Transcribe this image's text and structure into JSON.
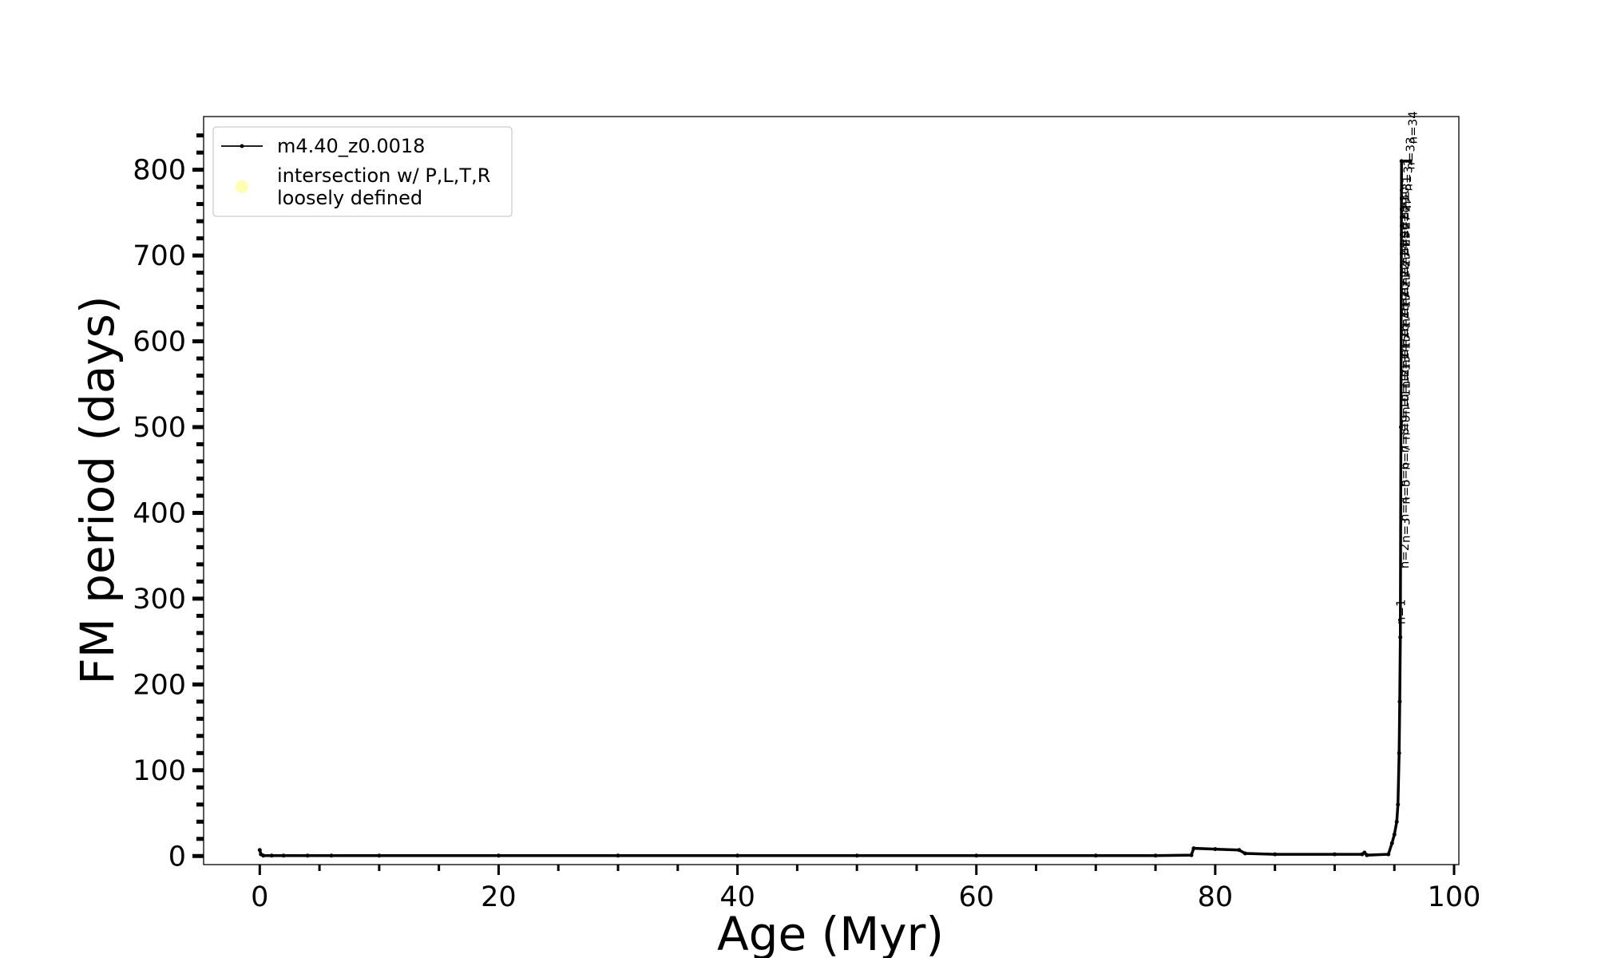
{
  "chart_data": {
    "type": "line",
    "x_label": "Age (Myr)",
    "y_label": "FM period (days)",
    "xlim": [
      -4.7,
      100.4
    ],
    "ylim": [
      -10,
      862
    ],
    "xticks": [
      0,
      20,
      40,
      60,
      80,
      100
    ],
    "yticks": [
      0,
      100,
      200,
      300,
      400,
      500,
      600,
      700,
      800
    ],
    "xminorticks": [
      5,
      10,
      15,
      25,
      30,
      35,
      45,
      50,
      55,
      65,
      70,
      75,
      85,
      90,
      95
    ],
    "yminorticks": [
      20,
      40,
      60,
      80,
      120,
      140,
      160,
      180,
      220,
      240,
      260,
      280,
      320,
      340,
      360,
      380,
      420,
      440,
      460,
      480,
      520,
      540,
      560,
      580,
      620,
      640,
      660,
      680,
      720,
      740,
      760,
      780,
      820,
      840
    ],
    "legend": "upper left",
    "series": [
      {
        "name": "m4.40_z0.0018",
        "color": "#000000",
        "x": [
          0,
          0.1,
          0.3,
          1,
          2,
          4,
          6,
          10,
          20,
          30,
          40,
          50,
          60,
          70,
          75,
          78,
          78.2,
          80,
          82,
          82.5,
          85,
          90,
          92.3,
          92.5,
          92.7,
          94.5,
          94.8,
          95,
          95.2,
          95.3,
          95.4,
          95.45,
          95.5,
          95.55,
          95.6,
          96.3
        ],
        "values": [
          7,
          2,
          0.5,
          0.5,
          0.5,
          0.5,
          0.5,
          0.5,
          0.5,
          0.5,
          0.5,
          0.5,
          0.5,
          0.5,
          0.5,
          1,
          9,
          8,
          7,
          3,
          2,
          2,
          2,
          4,
          1,
          2,
          15,
          25,
          40,
          60,
          120,
          180,
          255,
          500,
          810,
          810
        ]
      },
      {
        "name": "intersection w/ P,L,T,R\nloosely defined",
        "color": "#ffffb0",
        "x": [],
        "values": []
      }
    ],
    "annotations": [
      {
        "text": "n=1",
        "x": 95.9,
        "y": 270
      },
      {
        "text": "n=2",
        "x": 96.2,
        "y": 335
      },
      {
        "text": "n=3",
        "x": 96.3,
        "y": 365
      },
      {
        "text": "n=4",
        "x": 96.2,
        "y": 390
      },
      {
        "text": "n=5",
        "x": 96.3,
        "y": 410
      },
      {
        "text": "n=6",
        "x": 96.2,
        "y": 430
      },
      {
        "text": "n=7",
        "x": 96.3,
        "y": 450
      },
      {
        "text": "n=8",
        "x": 96.2,
        "y": 470
      },
      {
        "text": "n=9",
        "x": 96.3,
        "y": 485
      },
      {
        "text": "n=10",
        "x": 96.2,
        "y": 500
      },
      {
        "text": "n=11",
        "x": 96.3,
        "y": 515
      },
      {
        "text": "n=12",
        "x": 96.2,
        "y": 530
      },
      {
        "text": "n=13",
        "x": 96.3,
        "y": 545
      },
      {
        "text": "n=14",
        "x": 96.2,
        "y": 558
      },
      {
        "text": "n=15",
        "x": 96.3,
        "y": 570
      },
      {
        "text": "n=16",
        "x": 96.2,
        "y": 582
      },
      {
        "text": "n=17",
        "x": 96.3,
        "y": 594
      },
      {
        "text": "n=18",
        "x": 96.2,
        "y": 606
      },
      {
        "text": "n=19",
        "x": 96.3,
        "y": 618
      },
      {
        "text": "n=20",
        "x": 96.2,
        "y": 630
      },
      {
        "text": "n=21",
        "x": 96.3,
        "y": 642
      },
      {
        "text": "n=22",
        "x": 96.2,
        "y": 654
      },
      {
        "text": "n=23",
        "x": 96.3,
        "y": 666
      },
      {
        "text": "n=24",
        "x": 96.2,
        "y": 678
      },
      {
        "text": "n=25",
        "x": 96.3,
        "y": 690
      },
      {
        "text": "n=26",
        "x": 96.2,
        "y": 700
      },
      {
        "text": "n=27",
        "x": 96.3,
        "y": 710
      },
      {
        "text": "n=28",
        "x": 96.2,
        "y": 720
      },
      {
        "text": "n=29",
        "x": 96.3,
        "y": 730
      },
      {
        "text": "n=30",
        "x": 96.2,
        "y": 742
      },
      {
        "text": "n=31",
        "x": 96.4,
        "y": 755
      },
      {
        "text": "n=32",
        "x": 96.5,
        "y": 775
      },
      {
        "text": "n=33",
        "x": 96.7,
        "y": 800
      },
      {
        "text": "n=34",
        "x": 96.9,
        "y": 830
      }
    ]
  }
}
